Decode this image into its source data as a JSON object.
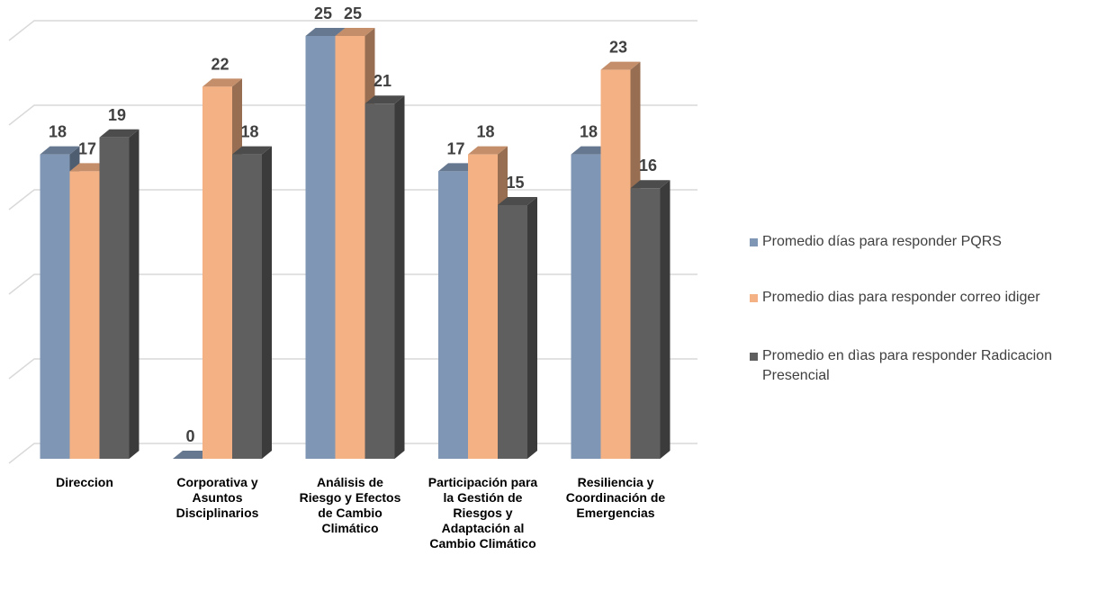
{
  "chart_data": {
    "type": "bar3d",
    "categories": [
      "Direccion",
      "Corporativa y Asuntos Disciplinarios",
      "Análisis de Riesgo y Efectos de Cambio Climático",
      "Participación para la Gestión de Riesgos y Adaptación al Cambio Climático",
      "Resiliencia y Coordinación de Emergencias"
    ],
    "series": [
      {
        "name": "Promedio días para responder  PQRS",
        "color": "#7f96b4",
        "values": [
          18,
          0,
          25,
          17,
          18
        ]
      },
      {
        "name": "Promedio dias para responder correo idiger",
        "color": "#f4b183",
        "values": [
          17,
          22,
          25,
          18,
          23
        ]
      },
      {
        "name": "Promedio en dìas para responder Radicacion Presencial",
        "color": "#5f5f5f",
        "values": [
          19,
          18,
          21,
          15,
          16
        ]
      }
    ],
    "ylim": [
      0,
      25
    ],
    "yticks": [
      0,
      5,
      10,
      15,
      20,
      25
    ],
    "grid": true,
    "legend": "right"
  }
}
